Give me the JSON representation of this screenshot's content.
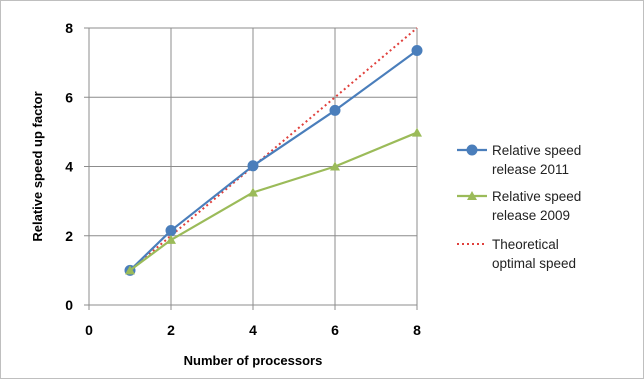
{
  "chart_data": {
    "type": "line",
    "title": "",
    "xlabel": "Number of processors",
    "ylabel": "Relative speed up factor",
    "x_ticks": [
      "0",
      "2",
      "4",
      "6",
      "8"
    ],
    "y_ticks": [
      "0",
      "2",
      "4",
      "6",
      "8"
    ],
    "xlim": [
      0,
      8
    ],
    "ylim": [
      0,
      8
    ],
    "grid": true,
    "legend_position": "right",
    "series": [
      {
        "name_lines": [
          "Relative speed",
          "release 2011"
        ],
        "x": [
          1,
          2,
          4,
          6,
          8
        ],
        "y": [
          1.0,
          2.15,
          4.02,
          5.62,
          7.35
        ],
        "color": "#4a7ebb",
        "marker": "circle",
        "line_style": "solid"
      },
      {
        "name_lines": [
          "Relative speed",
          "release 2009"
        ],
        "x": [
          1,
          2,
          4,
          6,
          8
        ],
        "y": [
          1.0,
          1.88,
          3.25,
          4.0,
          4.98
        ],
        "color": "#9bbb59",
        "marker": "triangle",
        "line_style": "solid"
      },
      {
        "name_lines": [
          "Theoretical",
          "optimal speed"
        ],
        "x": [
          1,
          2,
          4,
          6,
          8
        ],
        "y": [
          1,
          2,
          4,
          6,
          8
        ],
        "color": "#e0403c",
        "marker": "none",
        "line_style": "dotted"
      }
    ]
  }
}
